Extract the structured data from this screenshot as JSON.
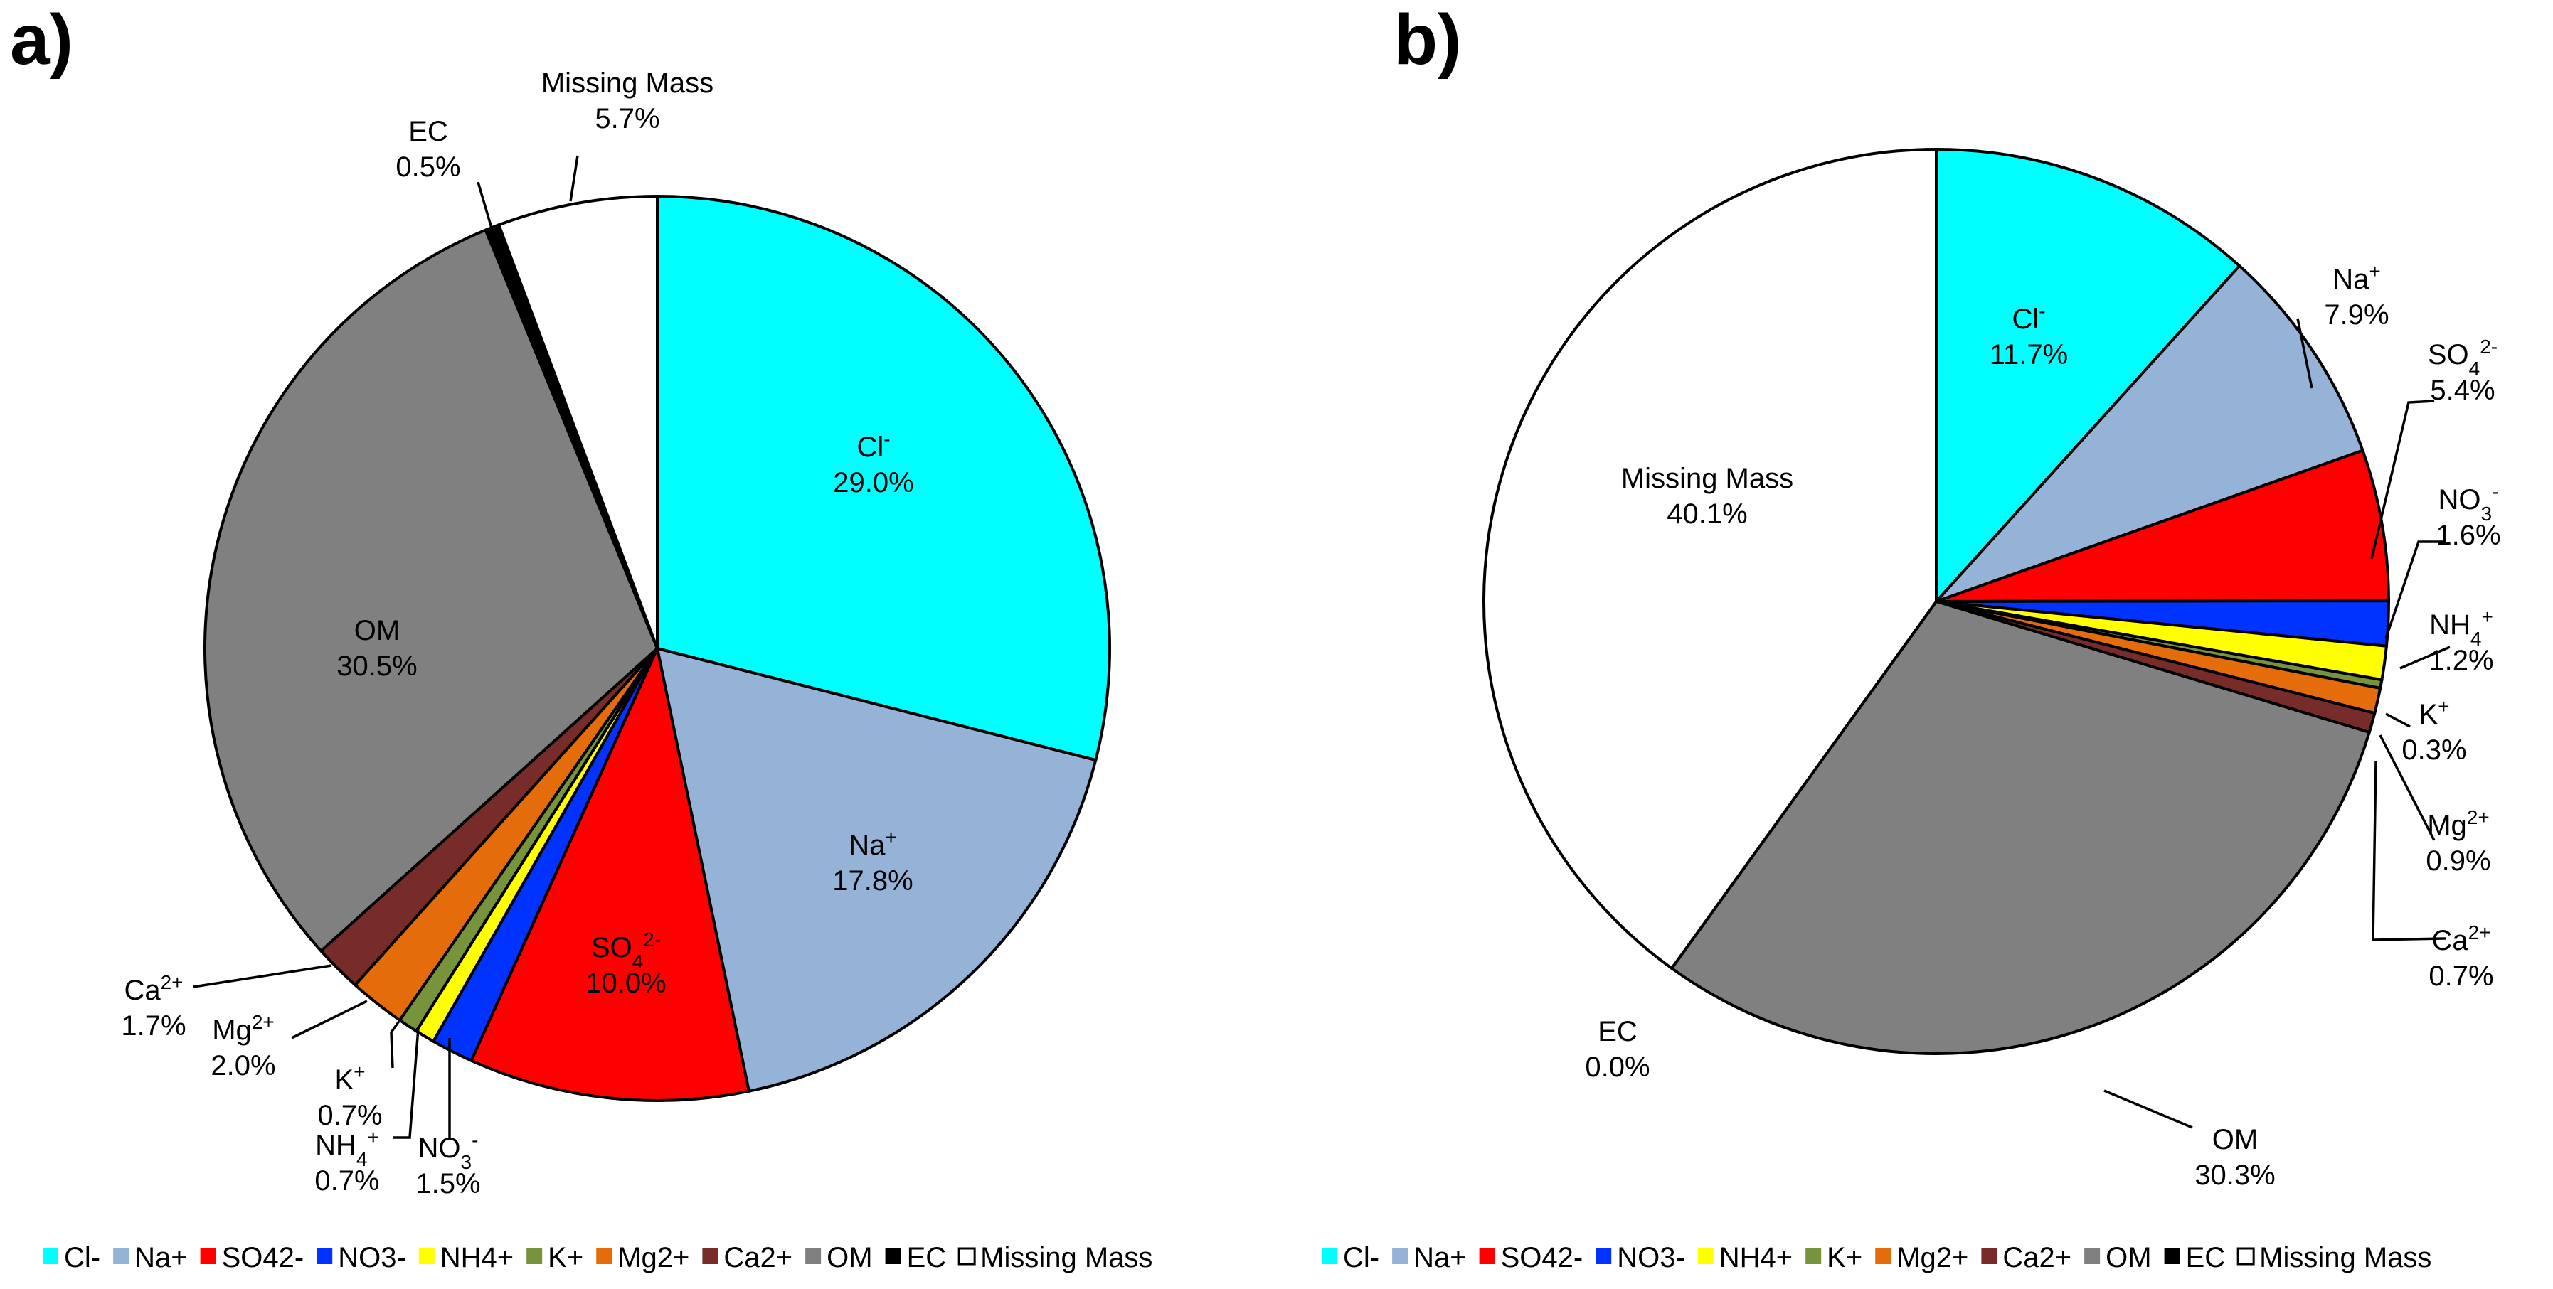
{
  "colors": {
    "Cl-": "#00FFFF",
    "Na+": "#95B3D7",
    "SO42-": "#FF0000",
    "NO3-": "#0033FF",
    "NH4+": "#FFFF00",
    "K+": "#77933C",
    "Mg2+": "#E46C0A",
    "Ca2+": "#772C2A",
    "OM": "#808080",
    "EC": "#000000",
    "Missing Mass": "#FFFFFF"
  },
  "legend": [
    "Cl-",
    "Na+",
    "SO42-",
    "NO3-",
    "NH4+",
    "K+",
    "Mg2+",
    "Ca2+",
    "OM",
    "EC",
    "Missing Mass"
  ],
  "chart_data": [
    {
      "type": "pie",
      "panel": "a)",
      "slices": [
        {
          "key": "Cl-",
          "base": "Cl",
          "sup": "-",
          "sub": "",
          "value": 29.0,
          "pct": "29.0%"
        },
        {
          "key": "Na+",
          "base": "Na",
          "sup": "+",
          "sub": "",
          "value": 17.8,
          "pct": "17.8%"
        },
        {
          "key": "SO42-",
          "base": "SO",
          "sup": "2-",
          "sub": "4",
          "value": 10.0,
          "pct": "10.0%"
        },
        {
          "key": "NO3-",
          "base": "NO",
          "sup": "-",
          "sub": "3",
          "value": 1.5,
          "pct": "1.5%"
        },
        {
          "key": "NH4+",
          "base": "NH",
          "sup": "+",
          "sub": "4",
          "value": 0.7,
          "pct": "0.7%"
        },
        {
          "key": "K+",
          "base": "K",
          "sup": "+",
          "sub": "",
          "value": 0.7,
          "pct": "0.7%"
        },
        {
          "key": "Mg2+",
          "base": "Mg",
          "sup": "2+",
          "sub": "",
          "value": 2.0,
          "pct": "2.0%"
        },
        {
          "key": "Ca2+",
          "base": "Ca",
          "sup": "2+",
          "sub": "",
          "value": 1.7,
          "pct": "1.7%"
        },
        {
          "key": "OM",
          "base": "OM",
          "sup": "",
          "sub": "",
          "value": 30.5,
          "pct": "30.5%"
        },
        {
          "key": "EC",
          "base": "EC",
          "sup": "",
          "sub": "",
          "value": 0.5,
          "pct": "0.5%"
        },
        {
          "key": "Missing Mass",
          "base": "Missing Mass",
          "sup": "",
          "sub": "",
          "value": 5.7,
          "pct": "5.7%"
        }
      ]
    },
    {
      "type": "pie",
      "panel": "b)",
      "slices": [
        {
          "key": "Cl-",
          "base": "Cl",
          "sup": "-",
          "sub": "",
          "value": 11.7,
          "pct": "11.7%"
        },
        {
          "key": "Na+",
          "base": "Na",
          "sup": "+",
          "sub": "",
          "value": 7.9,
          "pct": "7.9%"
        },
        {
          "key": "SO42-",
          "base": "SO",
          "sup": "2-",
          "sub": "4",
          "value": 5.4,
          "pct": "5.4%"
        },
        {
          "key": "NO3-",
          "base": "NO",
          "sup": "-",
          "sub": "3",
          "value": 1.6,
          "pct": "1.6%"
        },
        {
          "key": "NH4+",
          "base": "NH",
          "sup": "+",
          "sub": "4",
          "value": 1.2,
          "pct": "1.2%"
        },
        {
          "key": "K+",
          "base": "K",
          "sup": "+",
          "sub": "",
          "value": 0.3,
          "pct": "0.3%"
        },
        {
          "key": "Mg2+",
          "base": "Mg",
          "sup": "2+",
          "sub": "",
          "value": 0.9,
          "pct": "0.9%"
        },
        {
          "key": "Ca2+",
          "base": "Ca",
          "sup": "2+",
          "sub": "",
          "value": 0.7,
          "pct": "0.7%"
        },
        {
          "key": "OM",
          "base": "OM",
          "sup": "",
          "sub": "",
          "value": 30.3,
          "pct": "30.3%"
        },
        {
          "key": "EC",
          "base": "EC",
          "sup": "",
          "sub": "",
          "value": 0.0,
          "pct": "0.0%"
        },
        {
          "key": "Missing Mass",
          "base": "Missing Mass",
          "sup": "",
          "sub": "",
          "value": 40.1,
          "pct": "40.1%"
        }
      ]
    }
  ]
}
